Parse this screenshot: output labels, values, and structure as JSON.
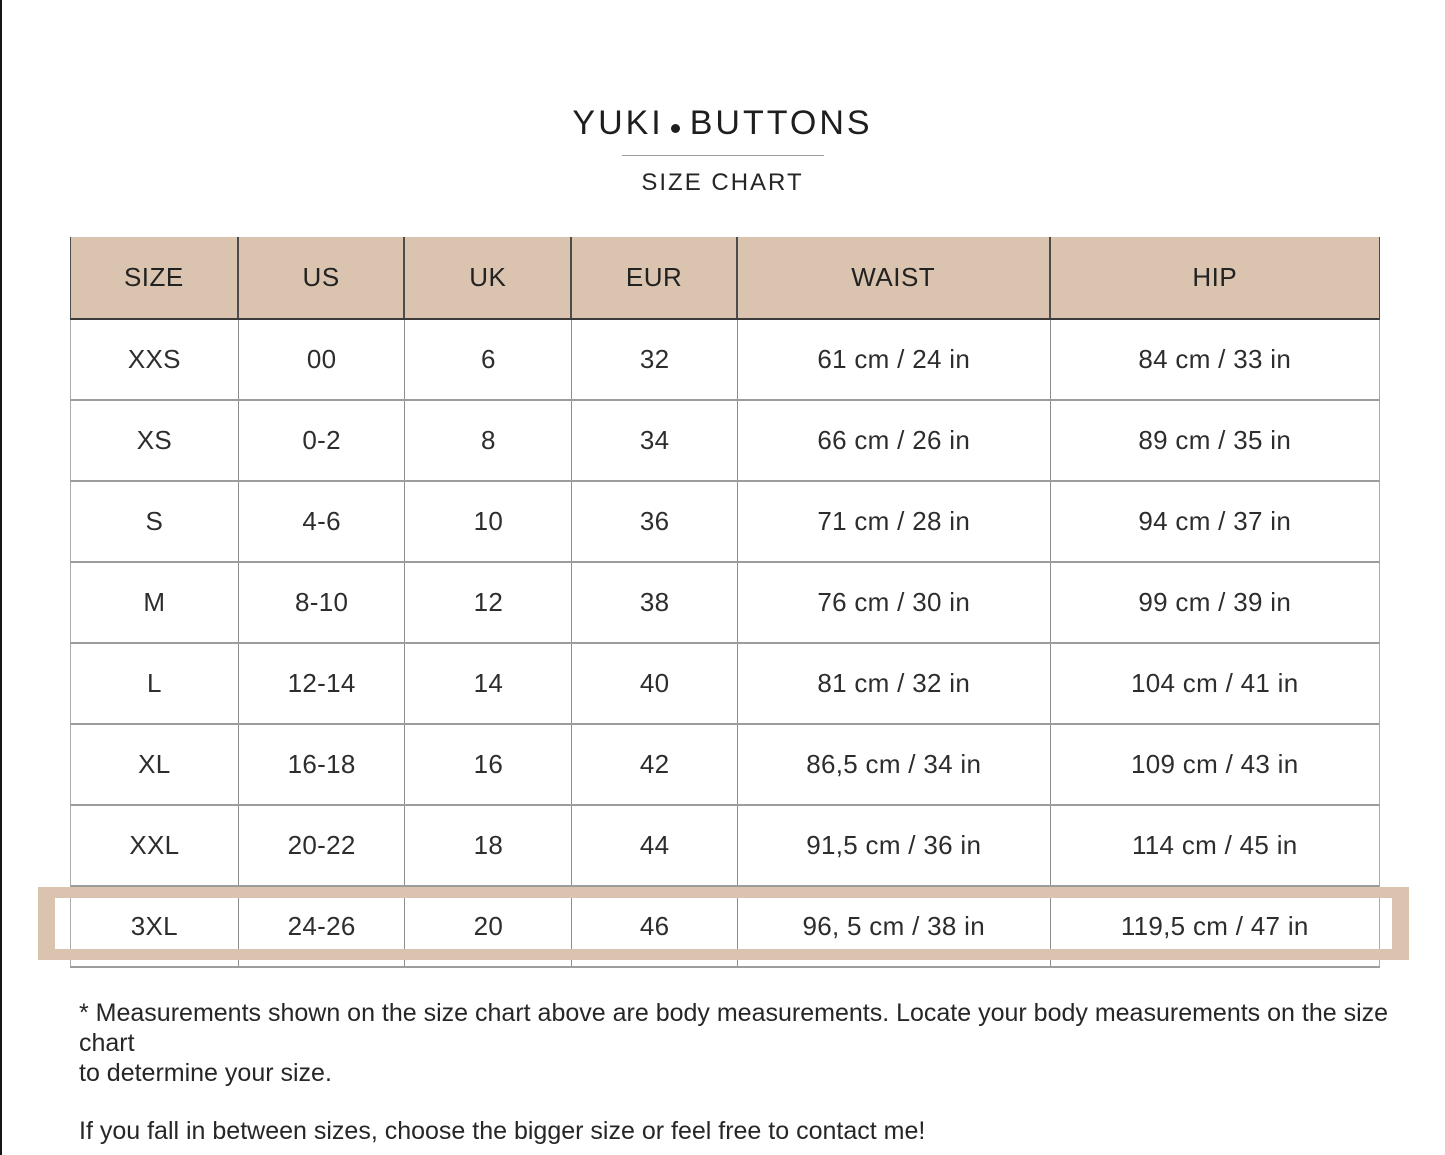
{
  "header": {
    "brand": "YUKI.BUTTONS",
    "brand_left": "YUKI",
    "brand_right": "BUTTONS",
    "subtitle": "SIZE CHART"
  },
  "table": {
    "columns": [
      "SIZE",
      "US",
      "UK",
      "EUR",
      "WAIST",
      "HIP"
    ],
    "rows": [
      {
        "size": "XXS",
        "us": "00",
        "uk": "6",
        "eur": "32",
        "waist": "61 cm / 24 in",
        "hip": "84 cm / 33 in"
      },
      {
        "size": "XS",
        "us": "0-2",
        "uk": "8",
        "eur": "34",
        "waist": "66 cm / 26 in",
        "hip": "89 cm / 35 in"
      },
      {
        "size": "S",
        "us": "4-6",
        "uk": "10",
        "eur": "36",
        "waist": "71 cm / 28 in",
        "hip": "94 cm / 37 in"
      },
      {
        "size": "M",
        "us": "8-10",
        "uk": "12",
        "eur": "38",
        "waist": "76 cm / 30 in",
        "hip": "99 cm / 39 in"
      },
      {
        "size": "L",
        "us": "12-14",
        "uk": "14",
        "eur": "40",
        "waist": "81 cm / 32 in",
        "hip": "104 cm / 41 in"
      },
      {
        "size": "XL",
        "us": "16-18",
        "uk": "16",
        "eur": "42",
        "waist": "86,5 cm / 34 in",
        "hip": "109 cm / 43 in"
      },
      {
        "size": "XXL",
        "us": "20-22",
        "uk": "18",
        "eur": "44",
        "waist": "91,5 cm / 36 in",
        "hip": "114 cm / 45 in"
      },
      {
        "size": "3XL",
        "us": "24-26",
        "uk": "20",
        "eur": "46",
        "waist": "96, 5 cm / 38 in",
        "hip": "119,5 cm / 47 in"
      }
    ],
    "highlighted_row": "3XL"
  },
  "notes": {
    "note1_line1": "* Measurements shown on the size chart above are body measurements. Locate your body measurements on the size chart",
    "note1_line2": "to determine your size.",
    "note2": "If you fall in between sizes, choose the bigger size or feel free to contact me!"
  },
  "colors": {
    "accent_beige": "#DBC4AF",
    "text_dark": "#2D2D2D",
    "row_line_gray": "#9C9C9C"
  }
}
